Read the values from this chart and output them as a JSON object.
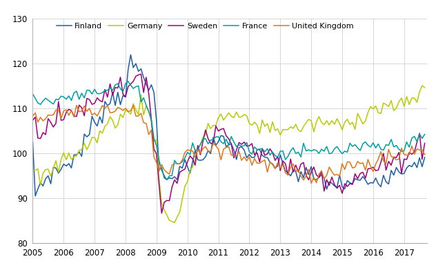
{
  "ylim": [
    80,
    130
  ],
  "xlim_start": 2005.0,
  "xlim_end": 2017.75,
  "yticks": [
    80,
    90,
    100,
    110,
    120,
    130
  ],
  "xtick_years": [
    2005,
    2006,
    2007,
    2008,
    2009,
    2010,
    2011,
    2012,
    2013,
    2014,
    2015,
    2016,
    2017
  ],
  "colors": {
    "Finland": "#1a5fa8",
    "Germany": "#b8cc00",
    "Sweden": "#a0007a",
    "France": "#00a0a0",
    "United_Kingdom": "#e07818"
  },
  "linewidth": 1.1,
  "grid_color": "#d0d0d0",
  "background_color": "#ffffff",
  "tick_fontsize": 8.5,
  "legend_fontsize": 8.0
}
